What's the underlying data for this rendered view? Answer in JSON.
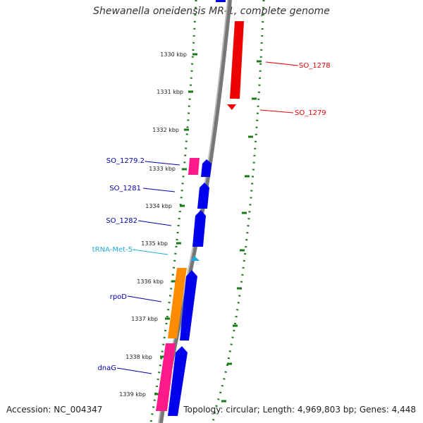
{
  "title": "Shewanella oneidensis MR-1, complete genome",
  "footer": {
    "accession": "Accession: NC_004347",
    "summary": "Topology: circular; Length: 4,969,803 bp; Genes: 4,448"
  },
  "colors": {
    "backbone": "#888888",
    "tick": "#1a7a1a",
    "forward_gene": "#0000ee",
    "reverse_gene": "#ee0000",
    "pink_gene": "#ff1a8c",
    "orange_gene": "#ff8c00",
    "trna": "#22aadd"
  },
  "ruler_labels": [
    "1330 kbp",
    "1331 kbp",
    "1332 kbp",
    "1333 kbp",
    "1334 kbp",
    "1335 kbp",
    "1336 kbp",
    "1337 kbp",
    "1338 kbp",
    "1339 kbp"
  ],
  "gene_labels": [
    {
      "text": "SO_1278",
      "color": "#ee0000"
    },
    {
      "text": "SO_1279",
      "color": "#ee0000"
    },
    {
      "text": "SO_1279.2",
      "color": "#0000aa"
    },
    {
      "text": "SO_1281",
      "color": "#0000aa"
    },
    {
      "text": "SO_1282",
      "color": "#0000aa"
    },
    {
      "text": "tRNA-Met-5",
      "color": "#22aadd"
    },
    {
      "text": "rpoD",
      "color": "#0000aa"
    },
    {
      "text": "dnaG",
      "color": "#0000aa"
    }
  ]
}
